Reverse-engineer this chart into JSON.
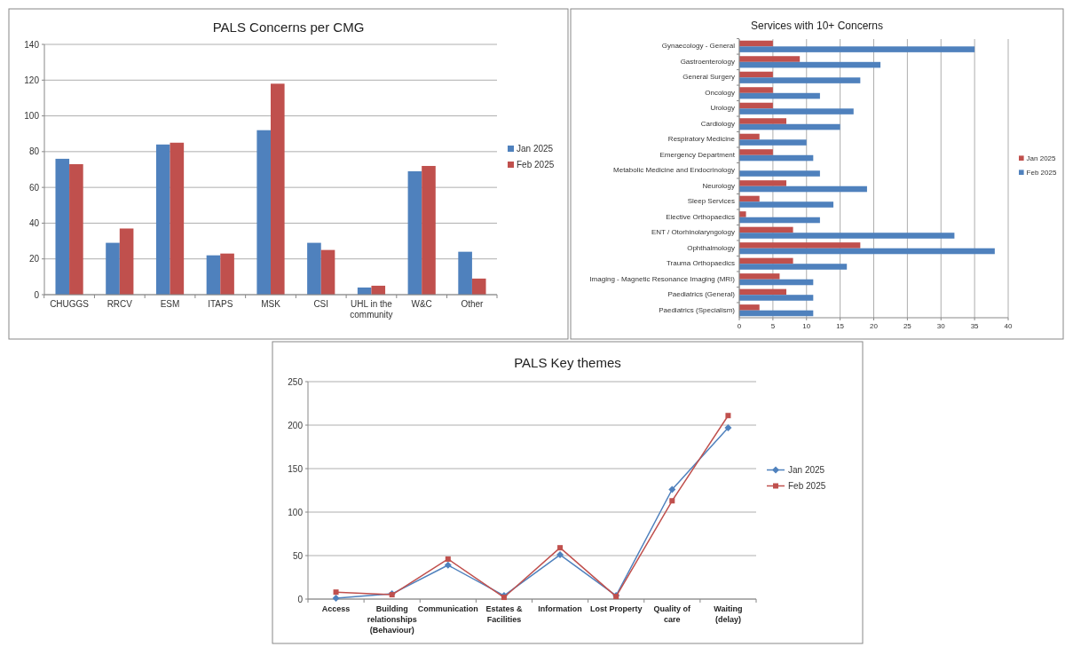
{
  "chart_data": [
    {
      "type": "bar",
      "title": "PALS Concerns per CMG",
      "categories": [
        "CHUGGS",
        "RRCV",
        "ESM",
        "ITAPS",
        "MSK",
        "CSI",
        "UHL in the community",
        "W&C",
        "Other"
      ],
      "series": [
        {
          "name": "Jan 2025",
          "color": "#4f81bd",
          "values": [
            76,
            29,
            84,
            22,
            92,
            29,
            4,
            69,
            24
          ]
        },
        {
          "name": "Feb 2025",
          "color": "#c0504d",
          "values": [
            73,
            37,
            85,
            23,
            118,
            25,
            5,
            72,
            9
          ]
        }
      ],
      "ylim": [
        0,
        140
      ],
      "yticks": [
        0,
        20,
        40,
        60,
        80,
        100,
        120,
        140
      ],
      "grid": "y",
      "legend": "right"
    },
    {
      "type": "bar",
      "orientation": "horizontal",
      "title": "Services with 10+ Concerns",
      "categories": [
        "Gynaecology - General",
        "Gastroenterology",
        "General Surgery",
        "Oncology",
        "Urology",
        "Cardiology",
        "Respiratory Medicine",
        "Emergency Department",
        "Metabolic Medicine and Endocrinology",
        "Neurology",
        "Sleep Services",
        "Elective Orthopaedics",
        "ENT / Otorhinolaryngology",
        "Ophthalmology",
        "Trauma Orthopaedics",
        "Imaging - Magnetic Resonance Imaging (MRI)",
        "Paediatrics (General)",
        "Paediatrics (Specialism)"
      ],
      "series": [
        {
          "name": "Jan 2025",
          "color": "#c0504d",
          "values": [
            5,
            9,
            5,
            5,
            5,
            7,
            3,
            5,
            0,
            7,
            3,
            1,
            8,
            18,
            8,
            6,
            7,
            3
          ]
        },
        {
          "name": "Feb 2025",
          "color": "#4f81bd",
          "values": [
            35,
            21,
            18,
            12,
            17,
            15,
            10,
            11,
            12,
            19,
            14,
            12,
            32,
            38,
            16,
            11,
            11,
            11
          ]
        }
      ],
      "xlim": [
        0,
        40
      ],
      "xticks": [
        0,
        5,
        10,
        15,
        20,
        25,
        30,
        35,
        40
      ],
      "grid": "x",
      "legend": "right"
    },
    {
      "type": "line",
      "title": "PALS Key themes",
      "categories": [
        "Access",
        "Building relationships (Behaviour)",
        "Communication",
        "Estates & Facilities",
        "Information",
        "Lost Property",
        "Quality of care",
        "Waiting (delay)"
      ],
      "series": [
        {
          "name": "Jan 2025",
          "color": "#4f81bd",
          "marker": "diamond",
          "values": [
            1,
            6,
            39,
            4,
            51,
            4,
            126,
            197
          ]
        },
        {
          "name": "Feb 2025",
          "color": "#c0504d",
          "marker": "square",
          "values": [
            8,
            5,
            46,
            2,
            59,
            3,
            113,
            211
          ]
        }
      ],
      "ylim": [
        0,
        250
      ],
      "yticks": [
        0,
        50,
        100,
        150,
        200,
        250
      ],
      "grid": "y",
      "legend": "right"
    }
  ]
}
